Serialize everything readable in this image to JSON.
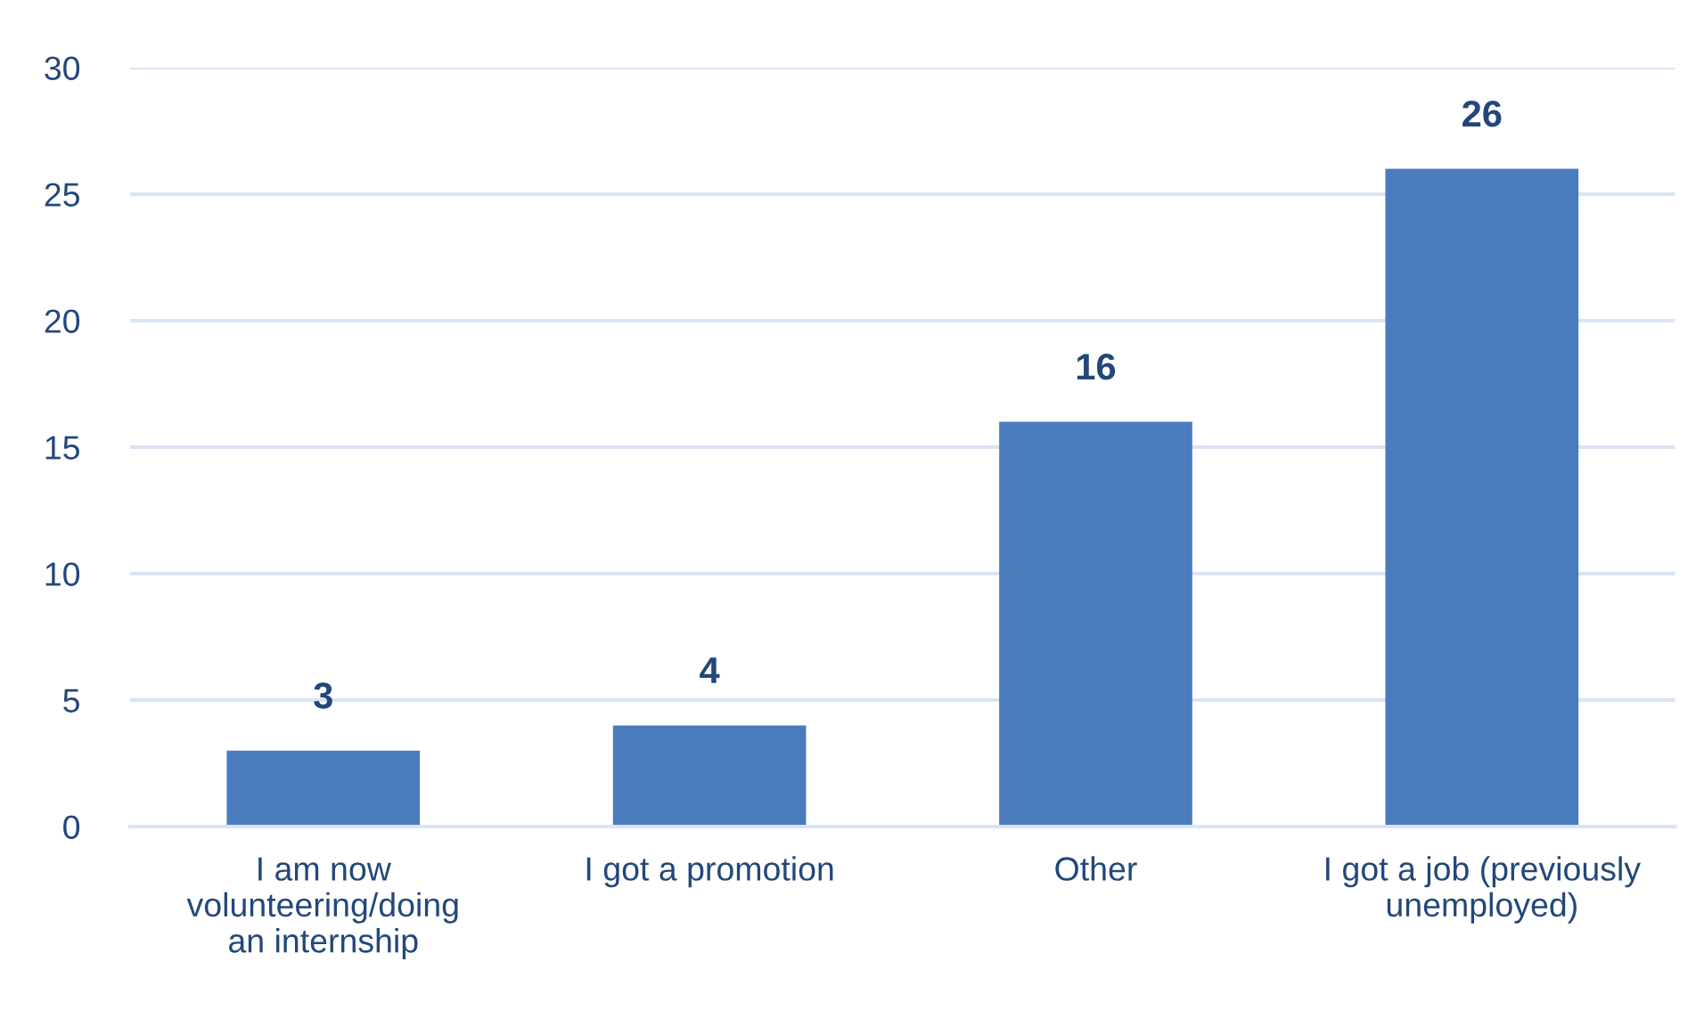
{
  "chart_data": {
    "type": "bar",
    "categories": [
      "I am now\nvolunteering/doing\nan internship",
      "I got a promotion",
      "Other",
      "I got a job (previously\nunemployed)"
    ],
    "values": [
      3,
      4,
      16,
      26
    ],
    "color": "#4a7cbd",
    "ylim": [
      0,
      30
    ],
    "yticks": [
      0,
      5,
      10,
      15,
      20,
      25,
      30
    ],
    "grid": "y",
    "data_labels": true
  }
}
